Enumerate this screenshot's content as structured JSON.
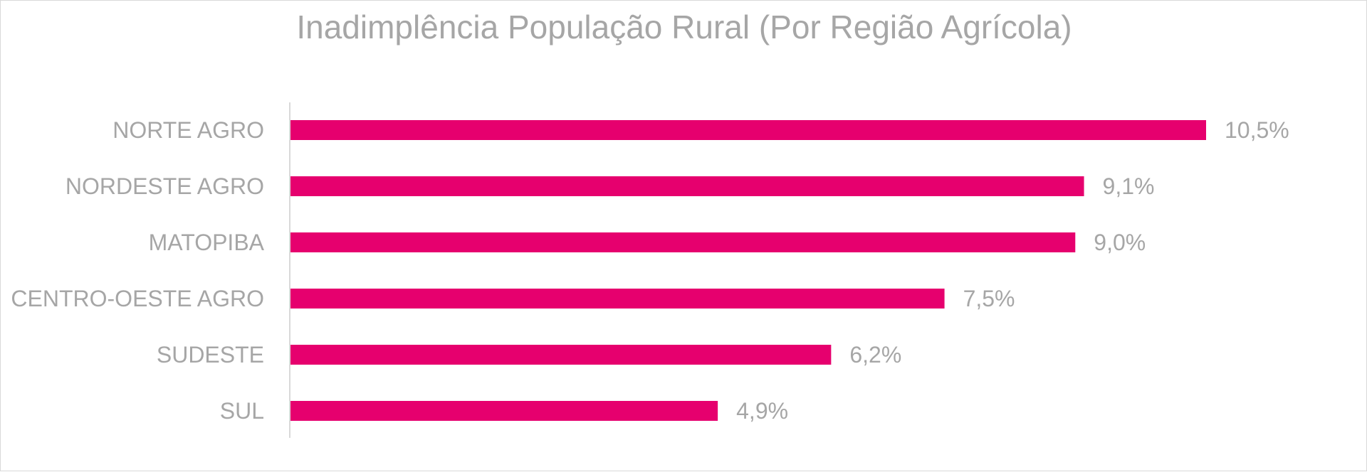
{
  "chart_data": {
    "type": "bar",
    "orientation": "horizontal",
    "title": "Inadimplência População Rural (Por Região Agrícola)",
    "categories": [
      "NORTE AGRO",
      "NORDESTE AGRO",
      "MATOPIBA",
      "CENTRO-OESTE AGRO",
      "SUDESTE",
      "SUL"
    ],
    "values": [
      10.5,
      9.1,
      9.0,
      7.5,
      6.2,
      4.9
    ],
    "data_labels": [
      "10,5%",
      "9,1%",
      "9,0%",
      "7,5%",
      "6,2%",
      "4,9%"
    ],
    "unit": "%",
    "xlim": [
      0,
      10.5
    ],
    "grid": false,
    "legend": "none",
    "bar_color": "#e6006e"
  }
}
